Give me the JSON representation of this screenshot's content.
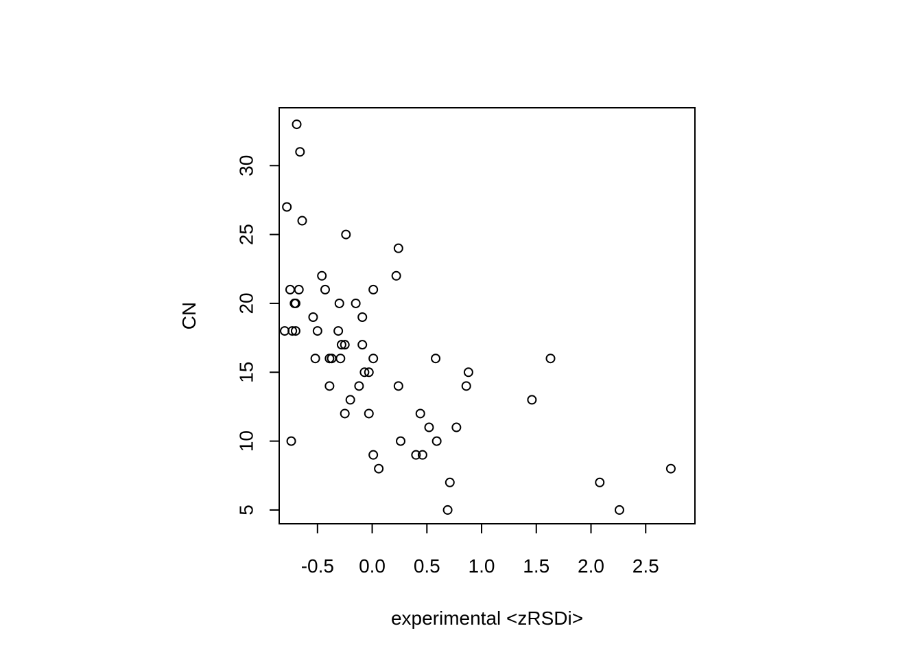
{
  "chart_data": {
    "type": "scatter",
    "title": "",
    "xlabel": "experimental <zRSDi>",
    "ylabel": "CN",
    "xlim": [
      -0.85,
      2.95
    ],
    "ylim": [
      4.0,
      34.2
    ],
    "x_ticks": [
      -0.5,
      0.0,
      0.5,
      1.0,
      1.5,
      2.0,
      2.5
    ],
    "x_tick_labels": [
      "-0.5",
      "0.0",
      "0.5",
      "1.0",
      "1.5",
      "2.0",
      "2.5"
    ],
    "y_ticks": [
      5,
      10,
      15,
      20,
      25,
      30
    ],
    "y_tick_labels": [
      "5",
      "10",
      "15",
      "20",
      "25",
      "30"
    ],
    "grid": false,
    "marker": "open-circle",
    "marker_color": "#000000",
    "points": [
      {
        "x": -0.69,
        "y": 33
      },
      {
        "x": -0.66,
        "y": 31
      },
      {
        "x": -0.78,
        "y": 27
      },
      {
        "x": -0.64,
        "y": 26
      },
      {
        "x": -0.24,
        "y": 25
      },
      {
        "x": 0.24,
        "y": 24
      },
      {
        "x": -0.46,
        "y": 22
      },
      {
        "x": 0.22,
        "y": 22
      },
      {
        "x": -0.75,
        "y": 21
      },
      {
        "x": -0.67,
        "y": 21
      },
      {
        "x": -0.43,
        "y": 21
      },
      {
        "x": 0.01,
        "y": 21
      },
      {
        "x": -0.71,
        "y": 20
      },
      {
        "x": -0.7,
        "y": 20
      },
      {
        "x": -0.3,
        "y": 20
      },
      {
        "x": -0.15,
        "y": 20
      },
      {
        "x": -0.54,
        "y": 19
      },
      {
        "x": -0.09,
        "y": 19
      },
      {
        "x": -0.8,
        "y": 18
      },
      {
        "x": -0.73,
        "y": 18
      },
      {
        "x": -0.7,
        "y": 18
      },
      {
        "x": -0.5,
        "y": 18
      },
      {
        "x": -0.31,
        "y": 18
      },
      {
        "x": -0.28,
        "y": 17
      },
      {
        "x": -0.25,
        "y": 17
      },
      {
        "x": -0.09,
        "y": 17
      },
      {
        "x": -0.52,
        "y": 16
      },
      {
        "x": -0.39,
        "y": 16
      },
      {
        "x": -0.37,
        "y": 16
      },
      {
        "x": -0.29,
        "y": 16
      },
      {
        "x": 0.01,
        "y": 16
      },
      {
        "x": 0.58,
        "y": 16
      },
      {
        "x": 1.63,
        "y": 16
      },
      {
        "x": -0.07,
        "y": 15
      },
      {
        "x": -0.03,
        "y": 15
      },
      {
        "x": 0.88,
        "y": 15
      },
      {
        "x": -0.39,
        "y": 14
      },
      {
        "x": -0.12,
        "y": 14
      },
      {
        "x": 0.24,
        "y": 14
      },
      {
        "x": 0.86,
        "y": 14
      },
      {
        "x": -0.2,
        "y": 13
      },
      {
        "x": 1.46,
        "y": 13
      },
      {
        "x": -0.25,
        "y": 12
      },
      {
        "x": -0.03,
        "y": 12
      },
      {
        "x": 0.44,
        "y": 12
      },
      {
        "x": 0.52,
        "y": 11
      },
      {
        "x": 0.77,
        "y": 11
      },
      {
        "x": -0.74,
        "y": 10
      },
      {
        "x": 0.26,
        "y": 10
      },
      {
        "x": 0.59,
        "y": 10
      },
      {
        "x": 0.01,
        "y": 9
      },
      {
        "x": 0.4,
        "y": 9
      },
      {
        "x": 0.46,
        "y": 9
      },
      {
        "x": 0.06,
        "y": 8
      },
      {
        "x": 2.73,
        "y": 8
      },
      {
        "x": 0.71,
        "y": 7
      },
      {
        "x": 2.08,
        "y": 7
      },
      {
        "x": 0.69,
        "y": 5
      },
      {
        "x": 2.26,
        "y": 5
      }
    ]
  }
}
